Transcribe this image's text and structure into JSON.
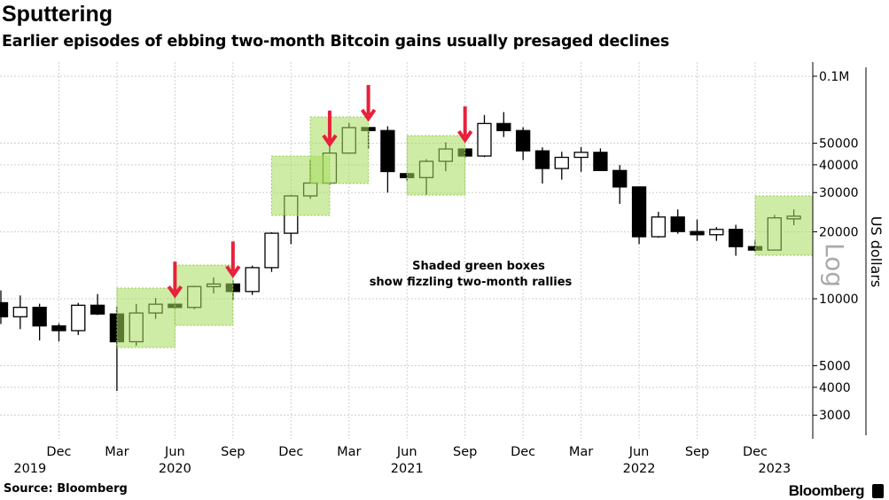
{
  "title": "Sputtering",
  "subtitle": "Earlier episodes of ebbing two-month Bitcoin gains usually presaged declines",
  "source": "Source: Bloomberg",
  "brand": "Bloomberg",
  "chart_data": {
    "type": "candlestick",
    "ylabel": "US dollars",
    "scale_label": "Log",
    "yscale": "log",
    "ylim": [
      2300,
      115000
    ],
    "grid": true,
    "y_ticks": [
      {
        "value": 100000,
        "label": "0.1M"
      },
      {
        "value": 50000,
        "label": "50000"
      },
      {
        "value": 40000,
        "label": "40000"
      },
      {
        "value": 30000,
        "label": "30000"
      },
      {
        "value": 20000,
        "label": "20000"
      },
      {
        "value": 10000,
        "label": "10000"
      },
      {
        "value": 5000,
        "label": "5000"
      },
      {
        "value": 4000,
        "label": "4000"
      },
      {
        "value": 3000,
        "label": "3000"
      }
    ],
    "x_ticks": [
      {
        "month": "2019-12",
        "label": "Dec"
      },
      {
        "month": "2020-03",
        "label": "Mar"
      },
      {
        "month": "2020-06",
        "label": "Jun"
      },
      {
        "month": "2020-09",
        "label": "Sep"
      },
      {
        "month": "2020-12",
        "label": "Dec"
      },
      {
        "month": "2021-03",
        "label": "Mar"
      },
      {
        "month": "2021-06",
        "label": "Jun"
      },
      {
        "month": "2021-09",
        "label": "Sep"
      },
      {
        "month": "2021-12",
        "label": "Dec"
      },
      {
        "month": "2022-03",
        "label": "Mar"
      },
      {
        "month": "2022-06",
        "label": "Jun"
      },
      {
        "month": "2022-09",
        "label": "Sep"
      },
      {
        "month": "2022-12",
        "label": "Dec"
      }
    ],
    "year_labels": [
      {
        "month": "2019-10",
        "label": "2019"
      },
      {
        "month": "2020-06",
        "label": "2020"
      },
      {
        "month": "2021-06",
        "label": "2021"
      },
      {
        "month": "2022-06",
        "label": "2022"
      },
      {
        "month": "2023-01",
        "label": "2023"
      }
    ],
    "candles": [
      {
        "month": "2019-09",
        "open": 9600,
        "high": 10900,
        "low": 7700,
        "close": 8300
      },
      {
        "month": "2019-10",
        "open": 8300,
        "high": 10350,
        "low": 7300,
        "close": 9150
      },
      {
        "month": "2019-11",
        "open": 9150,
        "high": 9500,
        "low": 6500,
        "close": 7550
      },
      {
        "month": "2019-12",
        "open": 7550,
        "high": 7750,
        "low": 6430,
        "close": 7190
      },
      {
        "month": "2020-01",
        "open": 7190,
        "high": 9580,
        "low": 6870,
        "close": 9350
      },
      {
        "month": "2020-02",
        "open": 9350,
        "high": 10500,
        "low": 8450,
        "close": 8540
      },
      {
        "month": "2020-03",
        "open": 8540,
        "high": 9190,
        "low": 3850,
        "close": 6410
      },
      {
        "month": "2020-04",
        "open": 6410,
        "high": 9470,
        "low": 6150,
        "close": 8630
      },
      {
        "month": "2020-05",
        "open": 8630,
        "high": 10070,
        "low": 8120,
        "close": 9450
      },
      {
        "month": "2020-06",
        "open": 9450,
        "high": 9450,
        "low": 9140,
        "close": 9140
      },
      {
        "month": "2020-07",
        "open": 9140,
        "high": 11450,
        "low": 8980,
        "close": 11350
      },
      {
        "month": "2020-08",
        "open": 11350,
        "high": 12470,
        "low": 10570,
        "close": 11650
      },
      {
        "month": "2020-09",
        "open": 11650,
        "high": 12070,
        "low": 9880,
        "close": 10780
      },
      {
        "month": "2020-10",
        "open": 10780,
        "high": 14100,
        "low": 10410,
        "close": 13800
      },
      {
        "month": "2020-11",
        "open": 13800,
        "high": 19900,
        "low": 13200,
        "close": 19700
      },
      {
        "month": "2020-12",
        "open": 19700,
        "high": 29300,
        "low": 17600,
        "close": 28990
      },
      {
        "month": "2021-01",
        "open": 28990,
        "high": 41950,
        "low": 28130,
        "close": 33110
      },
      {
        "month": "2021-02",
        "open": 33110,
        "high": 58330,
        "low": 32380,
        "close": 45140
      },
      {
        "month": "2021-03",
        "open": 45140,
        "high": 61700,
        "low": 45000,
        "close": 58800
      },
      {
        "month": "2021-04",
        "open": 58800,
        "high": 58800,
        "low": 47050,
        "close": 57000
      },
      {
        "month": "2021-05",
        "open": 57000,
        "high": 59600,
        "low": 30000,
        "close": 37300
      },
      {
        "month": "2021-06",
        "open": 36500,
        "high": 36500,
        "low": 34000,
        "close": 35040
      },
      {
        "month": "2021-07",
        "open": 35040,
        "high": 42400,
        "low": 29300,
        "close": 41460
      },
      {
        "month": "2021-08",
        "open": 41460,
        "high": 50500,
        "low": 37400,
        "close": 47100
      },
      {
        "month": "2021-09",
        "open": 47100,
        "high": 47100,
        "low": 43000,
        "close": 43800
      },
      {
        "month": "2021-10",
        "open": 43800,
        "high": 67000,
        "low": 43300,
        "close": 61300
      },
      {
        "month": "2021-11",
        "open": 61300,
        "high": 69000,
        "low": 53300,
        "close": 57000
      },
      {
        "month": "2021-12",
        "open": 57000,
        "high": 59000,
        "low": 42000,
        "close": 46200
      },
      {
        "month": "2022-01",
        "open": 46200,
        "high": 47900,
        "low": 32950,
        "close": 38500
      },
      {
        "month": "2022-02",
        "open": 38500,
        "high": 45800,
        "low": 34300,
        "close": 43200
      },
      {
        "month": "2022-03",
        "open": 43200,
        "high": 48100,
        "low": 37200,
        "close": 45500
      },
      {
        "month": "2022-04",
        "open": 45500,
        "high": 47400,
        "low": 37700,
        "close": 37700
      },
      {
        "month": "2022-05",
        "open": 37700,
        "high": 39900,
        "low": 26700,
        "close": 31800
      },
      {
        "month": "2022-06",
        "open": 31800,
        "high": 31900,
        "low": 17600,
        "close": 19000
      },
      {
        "month": "2022-07",
        "open": 19000,
        "high": 24600,
        "low": 18800,
        "close": 23300
      },
      {
        "month": "2022-08",
        "open": 23300,
        "high": 25200,
        "low": 19600,
        "close": 20050
      },
      {
        "month": "2022-09",
        "open": 20050,
        "high": 22700,
        "low": 18200,
        "close": 19400
      },
      {
        "month": "2022-10",
        "open": 19400,
        "high": 21000,
        "low": 18200,
        "close": 20500
      },
      {
        "month": "2022-11",
        "open": 20500,
        "high": 21500,
        "low": 15600,
        "close": 17150
      },
      {
        "month": "2022-12",
        "open": 17150,
        "high": 18400,
        "low": 16300,
        "close": 16550
      },
      {
        "month": "2023-01",
        "open": 16550,
        "high": 23800,
        "low": 16500,
        "close": 23100
      },
      {
        "month": "2023-02",
        "open": 23100,
        "high": 25200,
        "low": 21400,
        "close": 23500
      }
    ],
    "shaded_boxes": [
      {
        "start": "2020-03",
        "end": "2020-06",
        "low": 6040,
        "high": 11160
      },
      {
        "start": "2020-06",
        "end": "2020-09",
        "low": 7590,
        "high": 14170
      },
      {
        "start": "2020-11",
        "end": "2021-02",
        "low": 23690,
        "high": 43750
      },
      {
        "start": "2021-01",
        "end": "2021-04",
        "low": 32970,
        "high": 65560
      },
      {
        "start": "2021-06",
        "end": "2021-09",
        "low": 29250,
        "high": 54060
      },
      {
        "start": "2022-12",
        "end": "2023-03",
        "low": 15670,
        "high": 28970
      }
    ],
    "arrows": [
      "2020-06",
      "2020-09",
      "2021-02",
      "2021-04",
      "2021-09"
    ],
    "annotation": [
      "Shaded green boxes",
      "show fizzling two-month rallies"
    ],
    "colors": {
      "box": "#a6dc5c",
      "arrow": "#e8203c",
      "down": "#000000",
      "up": "#ffffff"
    }
  }
}
